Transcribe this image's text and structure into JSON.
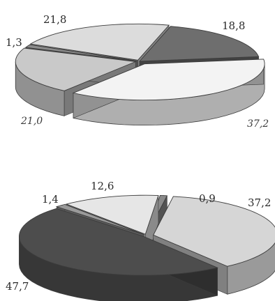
{
  "chart_data": [
    {
      "type": "pie",
      "style": "3d-exploded",
      "decimal_separator": ",",
      "slices": [
        {
          "label": "18,8",
          "value": 18.8,
          "color": "#6e6e6e"
        },
        {
          "label": "37,2",
          "value": 37.2,
          "color": "#f3f3f3"
        },
        {
          "label": "21,0",
          "value": 21.0,
          "color": "#c9c9c9"
        },
        {
          "label": "1,3",
          "value": 1.3,
          "color": "#8c8c8c"
        },
        {
          "label": "21,8",
          "value": 21.8,
          "color": "#dcdcdc"
        }
      ]
    },
    {
      "type": "pie",
      "style": "3d-exploded",
      "decimal_separator": ",",
      "slices": [
        {
          "label": "0,9",
          "value": 0.9,
          "color": "#8a8a8a"
        },
        {
          "label": "37,2",
          "value": 37.2,
          "color": "#d6d6d6"
        },
        {
          "label": "47,7",
          "value": 47.7,
          "color": "#4d4d4d"
        },
        {
          "label": "1,4",
          "value": 1.4,
          "color": "#9a9a9a"
        },
        {
          "label": "12,6",
          "value": 12.6,
          "color": "#e6e6e6"
        }
      ]
    }
  ]
}
